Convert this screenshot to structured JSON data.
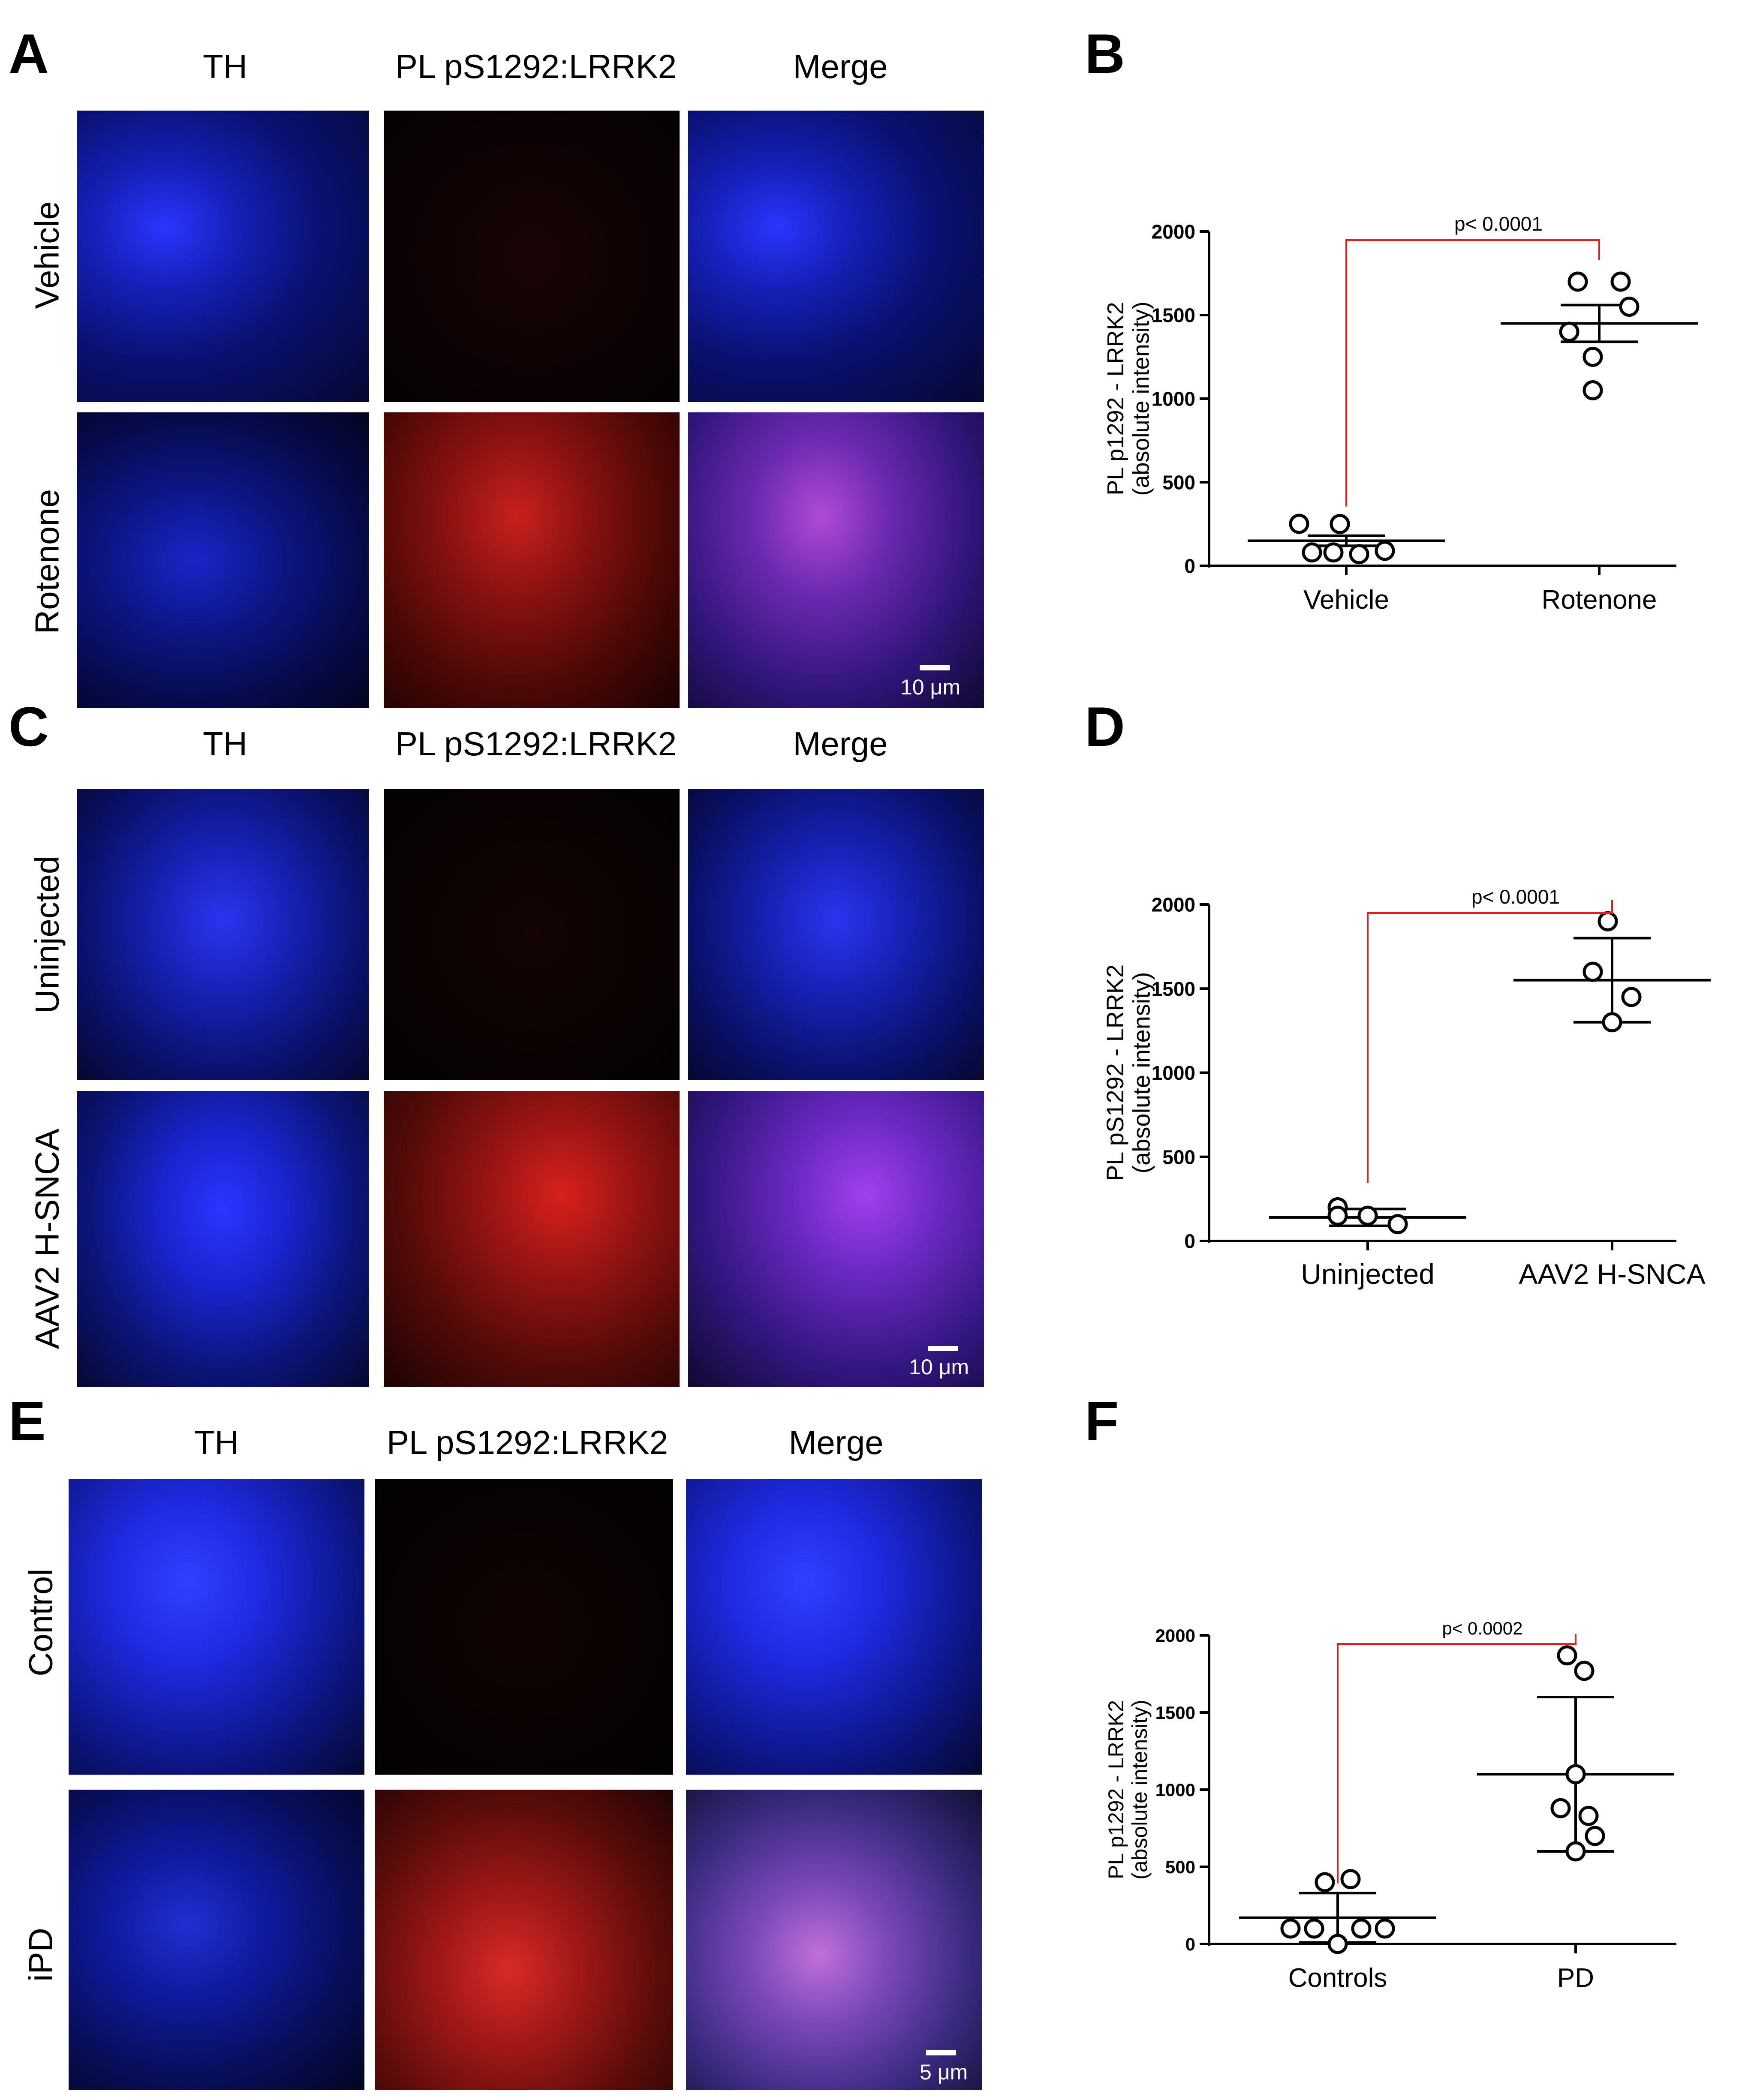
{
  "figure": {
    "panels": {
      "A": "A",
      "B": "B",
      "C": "C",
      "D": "D",
      "E": "E",
      "F": "F"
    },
    "columns": [
      "TH",
      "PL pS1292:LRRK2",
      "Merge"
    ],
    "block1": {
      "rows": [
        "Vehicle",
        "Rotenone"
      ],
      "scale": "10 μm"
    },
    "block2": {
      "rows": [
        "Uninjected",
        "AAV2 H-SNCA"
      ],
      "scale": "10 μm"
    },
    "block3": {
      "rows": [
        "Control",
        "iPD"
      ],
      "scale": "5 μm"
    },
    "colors": {
      "th_blue": "#1a22e0",
      "pl_red": "#d8201e",
      "merge_purple": "#8a2be8",
      "dark_bg": "#050208",
      "bracket_red": "#e02020"
    }
  },
  "chart_data": [
    {
      "type": "scatter",
      "panel": "B",
      "ylabel_line1": "PL p1292 - LRRK2",
      "ylabel_line2": "(absolute intensity)",
      "categories": [
        "Vehicle",
        "Rotenone"
      ],
      "yticks": [
        "0",
        "500",
        "1000",
        "1500",
        "2000"
      ],
      "ylim": [
        0,
        2000
      ],
      "series": [
        {
          "category": "Vehicle",
          "values": [
            200,
            250,
            80,
            80,
            70,
            90
          ],
          "mean": 150,
          "sd": 30
        },
        {
          "category": "Rotenone",
          "values": [
            1700,
            1700,
            1550,
            1400,
            1250,
            1050
          ],
          "mean": 1450,
          "sd": 110
        }
      ],
      "annotation": "p< 0.0001"
    },
    {
      "type": "scatter",
      "panel": "D",
      "ylabel_line1": "PL pS1292 - LRRK2",
      "ylabel_line2": "(absolute intensity)",
      "categories": [
        "Uninjected",
        "AAV2 H-SNCA"
      ],
      "yticks": [
        "0",
        "500",
        "1000",
        "1500",
        "2000"
      ],
      "ylim": [
        0,
        2000
      ],
      "series": [
        {
          "category": "Uninjected",
          "values": [
            200,
            150,
            150,
            100
          ],
          "mean": 140,
          "sd": 50
        },
        {
          "category": "AAV2 H-SNCA",
          "values": [
            1900,
            1600,
            1450,
            1300
          ],
          "mean": 1550,
          "sd": 250
        }
      ],
      "annotation": "p< 0.0001"
    },
    {
      "type": "scatter",
      "panel": "F",
      "ylabel_line1": "PL p1292 - LRRK2",
      "ylabel_line2": "(absolute intensity)",
      "categories": [
        "Controls",
        "PD"
      ],
      "yticks": [
        "0",
        "500",
        "1000",
        "1500",
        "2000"
      ],
      "ylim": [
        0,
        2000
      ],
      "series": [
        {
          "category": "Controls",
          "values": [
            420,
            400,
            100,
            100,
            100,
            0,
            100
          ],
          "mean": 170,
          "sd": 160
        },
        {
          "category": "PD",
          "values": [
            1870,
            1770,
            1100,
            880,
            830,
            700,
            600
          ],
          "mean": 1100,
          "sd": 500
        }
      ],
      "annotation": "p< 0.0002"
    }
  ]
}
